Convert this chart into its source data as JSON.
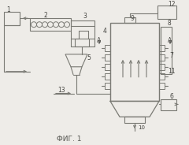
{
  "bg_color": "#eeece8",
  "line_color": "#7a7a74",
  "dark_color": "#444440",
  "caption": "ФИГ. 1",
  "caption_fontsize": 6.5,
  "figsize": [
    2.4,
    1.84
  ],
  "dpi": 100
}
